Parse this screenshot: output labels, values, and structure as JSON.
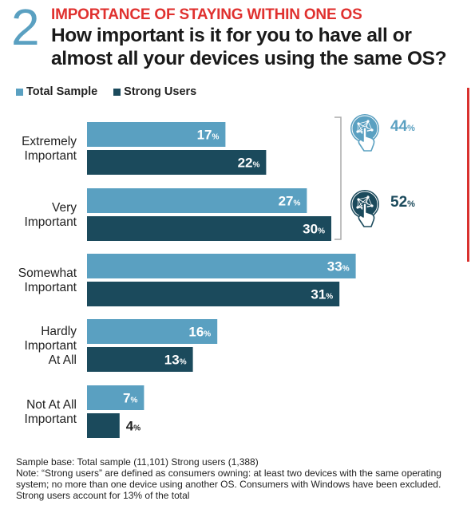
{
  "header": {
    "number": "2",
    "kicker": "IMPORTANCE OF STAYING WITHIN ONE OS",
    "title": "How important is it for you to have all or almost all your devices using the same OS?"
  },
  "colors": {
    "total_sample": "#5aa0c1",
    "strong_users": "#1b4a5c",
    "accent_red": "#e0312f"
  },
  "chart_data": {
    "type": "bar",
    "orientation": "horizontal",
    "categories": [
      [
        "Extremely",
        "Important"
      ],
      [
        "Very",
        "Important"
      ],
      [
        "Somewhat",
        "Important"
      ],
      [
        "Hardly",
        "Important",
        "At All"
      ],
      [
        "Not At All",
        "Important"
      ]
    ],
    "series": [
      {
        "name": "Total Sample",
        "values": [
          17,
          27,
          33,
          16,
          7
        ]
      },
      {
        "name": "Strong Users",
        "values": [
          22,
          30,
          31,
          13,
          4
        ]
      }
    ],
    "value_suffix": "%",
    "legend": "top-left",
    "grid": false,
    "callouts": [
      {
        "value": "44",
        "suffix": "%",
        "icon": "globe-touch-icon",
        "series": "Total Sample"
      },
      {
        "value": "52",
        "suffix": "%",
        "icon": "globe-touch-icon",
        "series": "Strong Users"
      }
    ]
  },
  "footnote": {
    "line1": "Sample base: Total sample (11,101) Strong users (1,388)",
    "line2": "Note: “Strong users” are defined as consumers owning: at least two devices with the same operating system; no more than one device using another OS. Consumers with Windows have been excluded. Strong users account for 13% of the total"
  }
}
